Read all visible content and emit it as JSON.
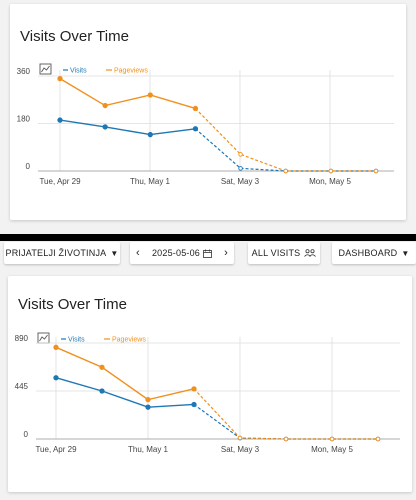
{
  "top_card": {
    "title": "Visits Over Time",
    "legend": {
      "visits": "Visits",
      "pageviews": "Pageviews"
    }
  },
  "toolbar": {
    "project": "PRIJATELJI ŽIVOTINJA",
    "date": "2025-05-06",
    "visits_filter": "ALL VISITS",
    "dashboard": "DASHBOARD",
    "prev_icon": "chevron-left-icon",
    "next_icon": "chevron-right-icon",
    "calendar_icon": "calendar-icon",
    "dropdown_icon": "caret-down-icon"
  },
  "bottom_card": {
    "title": "Visits Over Time",
    "legend": {
      "visits": "Visits",
      "pageviews": "Pageviews"
    }
  },
  "colors": {
    "visits": "#1f77b4",
    "pageviews": "#f0901e",
    "grid": "#dddddd"
  },
  "chart_data": [
    {
      "type": "line",
      "x": [
        "Apr 29",
        "Apr 30",
        "May 1",
        "May 2",
        "May 3",
        "May 4",
        "May 5",
        "May 6"
      ],
      "xticks": [
        "Tue, Apr 29",
        "Thu, May 1",
        "Sat, May 3",
        "Mon, May 5"
      ],
      "yticks": [
        "0",
        "180",
        "360"
      ],
      "ylim": [
        0,
        360
      ],
      "dashed_from_index": 3,
      "series": [
        {
          "name": "Visits",
          "values": [
            193,
            167,
            138,
            160,
            10,
            0,
            0,
            0
          ]
        },
        {
          "name": "Pageviews",
          "values": [
            350,
            248,
            288,
            237,
            63,
            0,
            0,
            0
          ]
        }
      ]
    },
    {
      "type": "line",
      "x": [
        "Apr 29",
        "Apr 30",
        "May 1",
        "May 2",
        "May 3",
        "May 4",
        "May 5",
        "May 6"
      ],
      "xticks": [
        "Tue, Apr 29",
        "Thu, May 1",
        "Sat, May 3",
        "Mon, May 5"
      ],
      "yticks": [
        "0",
        "445",
        "890"
      ],
      "ylim": [
        0,
        890
      ],
      "dashed_from_index": 3,
      "series": [
        {
          "name": "Visits",
          "values": [
            568,
            445,
            295,
            320,
            8,
            0,
            0,
            0
          ]
        },
        {
          "name": "Pageviews",
          "values": [
            850,
            665,
            365,
            465,
            10,
            0,
            0,
            0
          ]
        }
      ]
    }
  ]
}
